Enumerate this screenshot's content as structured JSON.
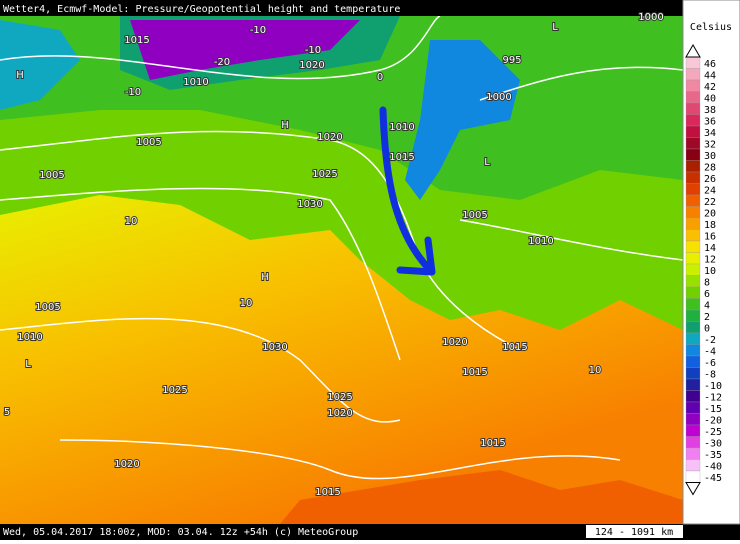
{
  "header": {
    "title": "Wetter4, Ecmwf-Model: Pressure/Geopotential height and temperature"
  },
  "footer": {
    "text": "Wed, 05.04.2017 18:00z, MOD: 03.04. 12z +54h (c) MeteoGroup",
    "scale": "124 - 1091 km"
  },
  "legend": {
    "title": "Celsius",
    "items": [
      {
        "value": 46,
        "color": "#f8c8d8"
      },
      {
        "value": 44,
        "color": "#f4a8bc"
      },
      {
        "value": 42,
        "color": "#f088a4"
      },
      {
        "value": 40,
        "color": "#e8688c"
      },
      {
        "value": 38,
        "color": "#e04874"
      },
      {
        "value": 36,
        "color": "#d8285c"
      },
      {
        "value": 34,
        "color": "#c01040"
      },
      {
        "value": 32,
        "color": "#a00828"
      },
      {
        "value": 30,
        "color": "#880014"
      },
      {
        "value": 28,
        "color": "#a82000"
      },
      {
        "value": 26,
        "color": "#c83000"
      },
      {
        "value": 24,
        "color": "#e04000"
      },
      {
        "value": 22,
        "color": "#f06000"
      },
      {
        "value": 20,
        "color": "#f88000"
      },
      {
        "value": 18,
        "color": "#f8a000"
      },
      {
        "value": 16,
        "color": "#f8c000"
      },
      {
        "value": 14,
        "color": "#f8e000"
      },
      {
        "value": 12,
        "color": "#e8f000"
      },
      {
        "value": 10,
        "color": "#c8f000"
      },
      {
        "value": 8,
        "color": "#98e000"
      },
      {
        "value": 6,
        "color": "#70d000"
      },
      {
        "value": 4,
        "color": "#40c020"
      },
      {
        "value": 2,
        "color": "#20b040"
      },
      {
        "value": 0,
        "color": "#10a070"
      },
      {
        "value": -2,
        "color": "#10a8c0"
      },
      {
        "value": -4,
        "color": "#1088e0"
      },
      {
        "value": -6,
        "color": "#1060e0"
      },
      {
        "value": -8,
        "color": "#1040c0"
      },
      {
        "value": -10,
        "color": "#2020a0"
      },
      {
        "value": -12,
        "color": "#400090"
      },
      {
        "value": -15,
        "color": "#6000b0"
      },
      {
        "value": -20,
        "color": "#9000c0"
      },
      {
        "value": -25,
        "color": "#c000d0"
      },
      {
        "value": -30,
        "color": "#e040e0"
      },
      {
        "value": -35,
        "color": "#f080f0"
      },
      {
        "value": -40,
        "color": "#f8c0f8"
      },
      {
        "value": -45,
        "color": "#ffffff"
      }
    ]
  },
  "map": {
    "labels": [
      "1015",
      "1010",
      "1005",
      "1005",
      "1020",
      "1020",
      "1025",
      "1030",
      "1010",
      "1015",
      "1000",
      "995",
      "1005",
      "1010",
      "1000",
      "1005",
      "1010",
      "1030",
      "1025",
      "1020",
      "1015",
      "1020",
      "1015",
      "1015",
      "1025",
      "1020",
      "1015",
      "H",
      "H",
      "H",
      "L",
      "L",
      "L",
      "-10",
      "-20",
      "-10",
      "0",
      "10",
      "10",
      "10",
      "-10",
      "5"
    ]
  }
}
